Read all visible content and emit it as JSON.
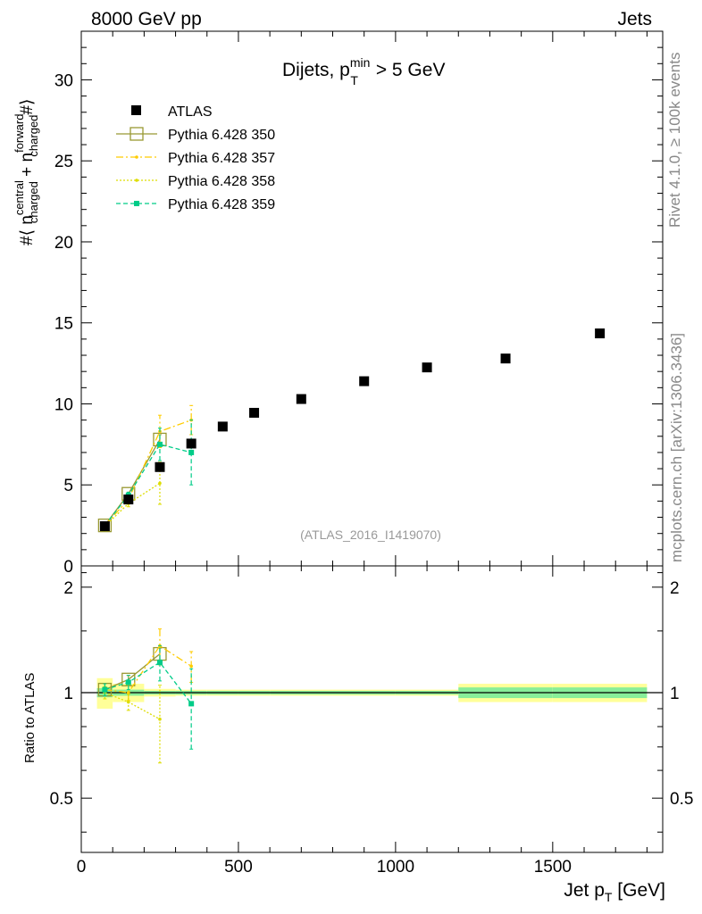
{
  "header": {
    "left": "8000 GeV pp",
    "right": "Jets"
  },
  "side_labels": {
    "rivet": "Rivet 4.1.0, ≥ 100k events",
    "mcplots": "mcplots.cern.ch [arXiv:1306.3436]"
  },
  "chart_data": {
    "type": "scatter",
    "title_parts": {
      "pre": "Dijets, p",
      "sup": "min",
      "sub": "T",
      "post": " > 5 GeV"
    },
    "analysis_id": "(ATLAS_2016_I1419070)",
    "ylabel_parts": {
      "pre": "#⟨ n",
      "sup1": "central",
      "sub1": "charged",
      "mid": " + n",
      "sup2": "forward",
      "sub2": "charged",
      "post": "#⟩"
    },
    "xlabel_parts": {
      "pre": "Jet p",
      "sub": "T",
      "post": " [GeV]"
    },
    "ratio_ylabel": "Ratio to ATLAS",
    "xlim": [
      0,
      1850
    ],
    "ylim_main": [
      0,
      33
    ],
    "ylim_ratio": [
      0.35,
      2.3
    ],
    "x_ticks": [
      0,
      500,
      1000,
      1500
    ],
    "x_tick_labels": [
      "0",
      "500",
      "1000",
      "1500"
    ],
    "y_ticks_main": [
      0,
      5,
      10,
      15,
      20,
      25,
      30
    ],
    "y_tick_labels_main": [
      "0",
      "5",
      "10",
      "15",
      "20",
      "25",
      "30"
    ],
    "y_ticks_ratio": [
      0.5,
      1,
      2
    ],
    "y_tick_labels_ratio": [
      "0.5",
      "1",
      "2"
    ],
    "data": {
      "name": "ATLAS",
      "x": [
        75,
        150,
        250,
        350,
        450,
        550,
        700,
        900,
        1100,
        1350,
        1650
      ],
      "xlow": [
        50,
        100,
        200,
        300,
        400,
        500,
        600,
        800,
        1000,
        1200,
        1500
      ],
      "xhigh": [
        100,
        200,
        300,
        400,
        500,
        600,
        800,
        1000,
        1200,
        1500,
        1800
      ],
      "y": [
        2.45,
        4.1,
        6.1,
        7.55,
        8.6,
        9.45,
        10.3,
        11.4,
        12.25,
        12.8,
        14.35
      ],
      "stat_rel": [
        0.03,
        0.02,
        0.012,
        0.012,
        0.012,
        0.012,
        0.012,
        0.012,
        0.012,
        0.035,
        0.035
      ],
      "tot_rel": [
        0.1,
        0.06,
        0.025,
        0.02,
        0.02,
        0.02,
        0.02,
        0.02,
        0.02,
        0.06,
        0.06
      ]
    },
    "series": [
      {
        "name": "Pythia 6.428 350",
        "color": "#999933",
        "marker": "open-square",
        "dash": "none",
        "x": [
          75,
          150,
          250
        ],
        "y": [
          2.5,
          4.45,
          7.8
        ],
        "yerr": [
          0.05,
          0.1,
          0.3
        ],
        "ratio": [
          1.02,
          1.09,
          1.29
        ],
        "ratio_err": [
          0.02,
          0.03,
          0.05
        ]
      },
      {
        "name": "Pythia 6.428 357",
        "color": "#ffcc00",
        "marker": "dot",
        "dash": "8,3,2,3",
        "x": [
          75,
          150,
          250,
          350
        ],
        "y": [
          2.5,
          4.1,
          8.3,
          9.0
        ],
        "yerr": [
          0.1,
          0.2,
          1.0,
          0.9
        ],
        "ratio": [
          1.02,
          1.0,
          1.36,
          1.19
        ],
        "ratio_err": [
          0.04,
          0.05,
          0.16,
          0.12
        ]
      },
      {
        "name": "Pythia 6.428 358",
        "color": "#dddd00",
        "marker": "dot",
        "dash": "2,2",
        "x": [
          75,
          150,
          250
        ],
        "y": [
          2.45,
          3.85,
          5.1
        ],
        "yerr": [
          0.1,
          0.2,
          1.3
        ],
        "ratio": [
          1.0,
          0.94,
          0.84
        ],
        "ratio_err": [
          0.04,
          0.05,
          0.21
        ]
      },
      {
        "name": "Pythia 6.428 359",
        "color": "#00cc88",
        "marker": "filled-square",
        "dash": "5,3",
        "x": [
          75,
          150,
          250,
          350
        ],
        "y": [
          2.5,
          4.35,
          7.5,
          7.0
        ],
        "yerr": [
          0.1,
          0.2,
          1.0,
          2.0
        ],
        "ratio": [
          1.02,
          1.07,
          1.22,
          0.93
        ],
        "ratio_err": [
          0.04,
          0.05,
          0.14,
          0.24
        ]
      }
    ]
  }
}
